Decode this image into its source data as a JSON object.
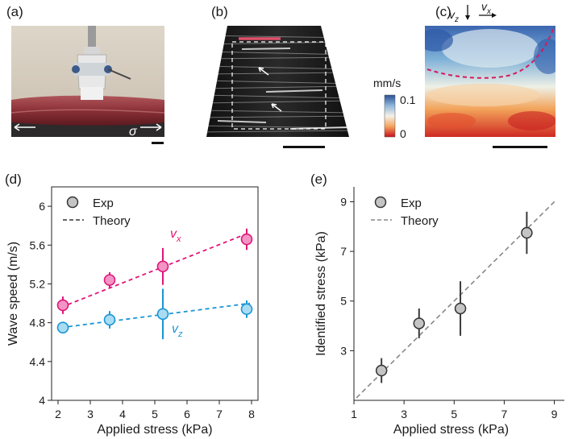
{
  "figure": {
    "panel_labels": [
      "(a)",
      "(b)",
      "(c)",
      "(d)",
      "(e)"
    ],
    "panel_a": {
      "stress_symbol": "σ"
    },
    "panel_c": {
      "velocity_labels": {
        "vz": "v",
        "vz_sub": "z",
        "vx": "v",
        "vx_sub": "x"
      },
      "colorbar": {
        "unit": "mm/s",
        "max_label": "0.1",
        "min_label": "0"
      }
    }
  },
  "colors": {
    "vx": "#e0157a",
    "vx_fill": "#f294c4",
    "vz": "#1a96d4",
    "vz_fill": "#a9dcf3",
    "exp_fill": "#c4c4c4",
    "exp_edge": "#333333",
    "theory": "#888888"
  },
  "chart_data": [
    {
      "id": "d",
      "type": "scatter",
      "xlabel": "Applied stress (kPa)",
      "ylabel": "Wave speed (m/s)",
      "xlim": [
        2,
        8
      ],
      "ylim": [
        4,
        6.2
      ],
      "xticks": [
        "2",
        "3",
        "4",
        "5",
        "6",
        "7",
        "8"
      ],
      "yticks": [
        "4",
        "4.4",
        "4.8",
        "5.2",
        "5.6",
        "6"
      ],
      "legend": {
        "exp": "Exp",
        "theory": "Theory",
        "position": "top-left"
      },
      "series": [
        {
          "name": "vx",
          "label": "v",
          "sub": "x",
          "x": [
            2.15,
            3.6,
            5.25,
            7.85
          ],
          "y": [
            4.98,
            5.24,
            5.38,
            5.66
          ],
          "err": [
            0.09,
            0.08,
            0.19,
            0.11
          ],
          "theory_x": [
            2.1,
            7.95
          ],
          "theory_y": [
            4.96,
            5.73
          ]
        },
        {
          "name": "vz",
          "label": "v",
          "sub": "z",
          "x": [
            2.15,
            3.6,
            5.25,
            7.85
          ],
          "y": [
            4.75,
            4.83,
            4.89,
            4.94
          ],
          "err": [
            0.06,
            0.09,
            0.26,
            0.09
          ],
          "theory_x": [
            2.1,
            7.95
          ],
          "theory_y": [
            4.75,
            5.0
          ]
        }
      ]
    },
    {
      "id": "e",
      "type": "scatter",
      "xlabel": "Applied stress (kPa)",
      "ylabel": "Identified stress (kPa)",
      "xlim": [
        1,
        9.4
      ],
      "ylim": [
        1,
        9.6
      ],
      "xticks": [
        "1",
        "3",
        "5",
        "7",
        "9"
      ],
      "yticks": [
        "3",
        "5",
        "7",
        "9"
      ],
      "legend": {
        "exp": "Exp",
        "theory": "Theory",
        "position": "top-left"
      },
      "series": [
        {
          "name": "Exp",
          "x": [
            2.1,
            3.6,
            5.25,
            7.9
          ],
          "y": [
            2.2,
            4.1,
            4.7,
            7.75
          ],
          "err": [
            0.5,
            0.6,
            1.1,
            0.85
          ],
          "theory_x": [
            1.1,
            9.05
          ],
          "theory_y": [
            1.1,
            9.05
          ]
        }
      ]
    }
  ]
}
